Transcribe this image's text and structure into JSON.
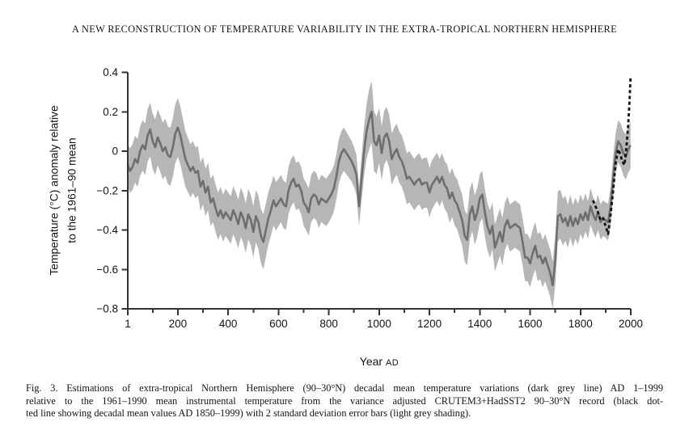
{
  "paper": {
    "running_head": "A NEW RECONSTRUCTION OF TEMPERATURE VARIABILITY IN THE EXTRA-TROPICAL NORTHERN HEMISPHERE",
    "caption_lines": [
      "Fig. 3. Estimations of extra-tropical Northern Hemisphere (90–30°N) decadal mean temperature variations (dark grey line) AD 1–1999",
      "relative to the 1961–1990 mean instrumental temperature from the variance adjusted CRUTEM3+HadSST2 90–30°N record (black dot-",
      "ted line showing decadal mean values AD 1850–1999) with 2 standard deviation error bars (light grey shading)."
    ]
  },
  "chart_data": {
    "type": "line",
    "title": "",
    "xlabel_word": "Year",
    "xlabel_era": "AD",
    "ylabel_lines": [
      "Temperature (°C) anomaly relative",
      "to the 1961–90 mean"
    ],
    "x_domain": [
      1,
      2000
    ],
    "y_domain": [
      -0.8,
      0.4
    ],
    "grid": "off",
    "legend": "none",
    "x_ticks": {
      "values": [
        1,
        200,
        400,
        600,
        800,
        1000,
        1200,
        1400,
        1600,
        1800,
        2000
      ],
      "labels": [
        "1",
        "200",
        "400",
        "600",
        "800",
        "1000",
        "1200",
        "1400",
        "1600",
        "1800",
        "2000"
      ],
      "minor": [
        100,
        300,
        500,
        700,
        900,
        1100,
        1300,
        1500,
        1700,
        1900
      ]
    },
    "y_ticks": {
      "values": [
        0.4,
        0.2,
        0,
        -0.2,
        -0.4,
        -0.6,
        -0.8
      ],
      "labels": [
        "0.4",
        "0.2",
        "0",
        "−0.2",
        "−0.4",
        "−0.6",
        "−0.8"
      ]
    },
    "colors": {
      "uncertainty_band": "#b6b6b6",
      "reconstruction_line": "#6e6e6e",
      "instrumental_line": "#141414",
      "axis": "#333333"
    },
    "series": {
      "reconstruction": {
        "name": "Extra-tropical NH (90–30°N) decadal mean temperature reconstruction, AD 1–1999",
        "style": "dark grey solid line",
        "points": [
          [
            1,
            -0.07
          ],
          [
            10,
            -0.1
          ],
          [
            20,
            -0.08
          ],
          [
            30,
            -0.04
          ],
          [
            40,
            -0.06
          ],
          [
            50,
            0.0
          ],
          [
            60,
            0.03
          ],
          [
            70,
            0.01
          ],
          [
            80,
            0.08
          ],
          [
            90,
            0.11
          ],
          [
            100,
            0.05
          ],
          [
            110,
            0.02
          ],
          [
            120,
            0.07
          ],
          [
            130,
            0.04
          ],
          [
            140,
            0.0
          ],
          [
            150,
            0.02
          ],
          [
            160,
            -0.02
          ],
          [
            170,
            -0.03
          ],
          [
            180,
            0.02
          ],
          [
            190,
            0.09
          ],
          [
            200,
            0.12
          ],
          [
            210,
            0.08
          ],
          [
            220,
            0.02
          ],
          [
            230,
            -0.04
          ],
          [
            240,
            -0.07
          ],
          [
            250,
            -0.1
          ],
          [
            260,
            -0.08
          ],
          [
            270,
            -0.11
          ],
          [
            280,
            -0.1
          ],
          [
            290,
            -0.18
          ],
          [
            300,
            -0.15
          ],
          [
            310,
            -0.21
          ],
          [
            320,
            -0.18
          ],
          [
            330,
            -0.26
          ],
          [
            340,
            -0.24
          ],
          [
            350,
            -0.29
          ],
          [
            360,
            -0.33
          ],
          [
            370,
            -0.3
          ],
          [
            380,
            -0.34
          ],
          [
            390,
            -0.31
          ],
          [
            400,
            -0.33
          ],
          [
            410,
            -0.35
          ],
          [
            420,
            -0.3
          ],
          [
            430,
            -0.33
          ],
          [
            440,
            -0.37
          ],
          [
            450,
            -0.31
          ],
          [
            460,
            -0.34
          ],
          [
            470,
            -0.39
          ],
          [
            480,
            -0.32
          ],
          [
            490,
            -0.35
          ],
          [
            500,
            -0.41
          ],
          [
            510,
            -0.33
          ],
          [
            520,
            -0.36
          ],
          [
            530,
            -0.43
          ],
          [
            540,
            -0.46
          ],
          [
            550,
            -0.4
          ],
          [
            560,
            -0.34
          ],
          [
            570,
            -0.3
          ],
          [
            580,
            -0.25
          ],
          [
            590,
            -0.28
          ],
          [
            600,
            -0.26
          ],
          [
            610,
            -0.24
          ],
          [
            620,
            -0.27
          ],
          [
            630,
            -0.28
          ],
          [
            640,
            -0.2
          ],
          [
            650,
            -0.16
          ],
          [
            660,
            -0.14
          ],
          [
            670,
            -0.18
          ],
          [
            680,
            -0.17
          ],
          [
            690,
            -0.2
          ],
          [
            700,
            -0.26
          ],
          [
            710,
            -0.28
          ],
          [
            720,
            -0.31
          ],
          [
            730,
            -0.24
          ],
          [
            740,
            -0.22
          ],
          [
            750,
            -0.23
          ],
          [
            760,
            -0.27
          ],
          [
            770,
            -0.24
          ],
          [
            780,
            -0.25
          ],
          [
            790,
            -0.26
          ],
          [
            800,
            -0.24
          ],
          [
            810,
            -0.22
          ],
          [
            820,
            -0.19
          ],
          [
            830,
            -0.13
          ],
          [
            840,
            -0.05
          ],
          [
            850,
            -0.01
          ],
          [
            860,
            0.01
          ],
          [
            870,
            -0.01
          ],
          [
            880,
            -0.03
          ],
          [
            890,
            -0.05
          ],
          [
            900,
            -0.08
          ],
          [
            910,
            -0.12
          ],
          [
            920,
            -0.28
          ],
          [
            930,
            -0.14
          ],
          [
            940,
            0.0
          ],
          [
            950,
            0.1
          ],
          [
            960,
            0.16
          ],
          [
            970,
            0.2
          ],
          [
            980,
            0.05
          ],
          [
            990,
            0.03
          ],
          [
            1000,
            0.08
          ],
          [
            1010,
            -0.01
          ],
          [
            1020,
            0.07
          ],
          [
            1030,
            0.09
          ],
          [
            1040,
            0.05
          ],
          [
            1050,
            -0.04
          ],
          [
            1060,
            -0.01
          ],
          [
            1070,
            0.01
          ],
          [
            1080,
            -0.03
          ],
          [
            1090,
            -0.05
          ],
          [
            1100,
            -0.09
          ],
          [
            1110,
            -0.14
          ],
          [
            1120,
            -0.13
          ],
          [
            1130,
            -0.15
          ],
          [
            1140,
            -0.17
          ],
          [
            1150,
            -0.15
          ],
          [
            1160,
            -0.14
          ],
          [
            1170,
            -0.17
          ],
          [
            1180,
            -0.16
          ],
          [
            1190,
            -0.16
          ],
          [
            1200,
            -0.21
          ],
          [
            1210,
            -0.17
          ],
          [
            1220,
            -0.15
          ],
          [
            1230,
            -0.13
          ],
          [
            1240,
            -0.16
          ],
          [
            1250,
            -0.13
          ],
          [
            1260,
            -0.17
          ],
          [
            1270,
            -0.19
          ],
          [
            1280,
            -0.24
          ],
          [
            1290,
            -0.21
          ],
          [
            1300,
            -0.25
          ],
          [
            1310,
            -0.27
          ],
          [
            1320,
            -0.31
          ],
          [
            1330,
            -0.35
          ],
          [
            1340,
            -0.43
          ],
          [
            1350,
            -0.45
          ],
          [
            1360,
            -0.32
          ],
          [
            1370,
            -0.28
          ],
          [
            1380,
            -0.35
          ],
          [
            1390,
            -0.31
          ],
          [
            1400,
            -0.24
          ],
          [
            1410,
            -0.22
          ],
          [
            1420,
            -0.31
          ],
          [
            1430,
            -0.38
          ],
          [
            1440,
            -0.42
          ],
          [
            1450,
            -0.38
          ],
          [
            1460,
            -0.49
          ],
          [
            1470,
            -0.45
          ],
          [
            1480,
            -0.41
          ],
          [
            1490,
            -0.46
          ],
          [
            1500,
            -0.38
          ],
          [
            1510,
            -0.35
          ],
          [
            1520,
            -0.39
          ],
          [
            1530,
            -0.38
          ],
          [
            1540,
            -0.37
          ],
          [
            1550,
            -0.38
          ],
          [
            1560,
            -0.39
          ],
          [
            1570,
            -0.46
          ],
          [
            1580,
            -0.54
          ],
          [
            1590,
            -0.54
          ],
          [
            1600,
            -0.57
          ],
          [
            1610,
            -0.52
          ],
          [
            1620,
            -0.48
          ],
          [
            1630,
            -0.54
          ],
          [
            1640,
            -0.53
          ],
          [
            1650,
            -0.57
          ],
          [
            1660,
            -0.54
          ],
          [
            1670,
            -0.58
          ],
          [
            1680,
            -0.62
          ],
          [
            1690,
            -0.68
          ],
          [
            1700,
            -0.55
          ],
          [
            1710,
            -0.33
          ],
          [
            1720,
            -0.32
          ],
          [
            1730,
            -0.36
          ],
          [
            1740,
            -0.34
          ],
          [
            1750,
            -0.38
          ],
          [
            1760,
            -0.33
          ],
          [
            1770,
            -0.38
          ],
          [
            1780,
            -0.34
          ],
          [
            1790,
            -0.37
          ],
          [
            1800,
            -0.32
          ],
          [
            1810,
            -0.35
          ],
          [
            1820,
            -0.31
          ],
          [
            1830,
            -0.35
          ],
          [
            1840,
            -0.28
          ],
          [
            1850,
            -0.32
          ],
          [
            1860,
            -0.35
          ],
          [
            1870,
            -0.31
          ],
          [
            1880,
            -0.36
          ],
          [
            1890,
            -0.34
          ],
          [
            1900,
            -0.35
          ],
          [
            1910,
            -0.36
          ],
          [
            1920,
            -0.28
          ],
          [
            1930,
            -0.13
          ],
          [
            1940,
            -0.01
          ],
          [
            1950,
            0.05
          ],
          [
            1960,
            0.03
          ],
          [
            1970,
            -0.01
          ],
          [
            1980,
            -0.03
          ],
          [
            1990,
            0.01
          ],
          [
            1999,
            0.03
          ]
        ]
      },
      "instrumental": {
        "name": "CRUTEM3+HadSST2 90–30°N decadal mean values, AD 1850–1999",
        "style": "black dotted line",
        "points": [
          [
            1850,
            -0.25
          ],
          [
            1860,
            -0.28
          ],
          [
            1870,
            -0.31
          ],
          [
            1880,
            -0.35
          ],
          [
            1890,
            -0.34
          ],
          [
            1900,
            -0.38
          ],
          [
            1910,
            -0.42
          ],
          [
            1920,
            -0.32
          ],
          [
            1930,
            -0.2
          ],
          [
            1940,
            -0.06
          ],
          [
            1950,
            0.01
          ],
          [
            1960,
            -0.02
          ],
          [
            1965,
            -0.05
          ],
          [
            1970,
            -0.06
          ],
          [
            1975,
            -0.07
          ],
          [
            1980,
            -0.01
          ],
          [
            1985,
            0.05
          ],
          [
            1990,
            0.14
          ],
          [
            1995,
            0.25
          ],
          [
            1999,
            0.37
          ]
        ]
      },
      "uncertainty_band": {
        "name": "2 standard deviation error bars",
        "style": "light grey shading",
        "halfwidth_points": [
          [
            1,
            0.11
          ],
          [
            100,
            0.14
          ],
          [
            200,
            0.15
          ],
          [
            300,
            0.12
          ],
          [
            400,
            0.12
          ],
          [
            500,
            0.13
          ],
          [
            540,
            0.14
          ],
          [
            600,
            0.12
          ],
          [
            700,
            0.12
          ],
          [
            800,
            0.12
          ],
          [
            860,
            0.11
          ],
          [
            905,
            0.1
          ],
          [
            920,
            0.1
          ],
          [
            945,
            0.13
          ],
          [
            965,
            0.16
          ],
          [
            1000,
            0.14
          ],
          [
            1060,
            0.13
          ],
          [
            1150,
            0.13
          ],
          [
            1250,
            0.12
          ],
          [
            1340,
            0.13
          ],
          [
            1420,
            0.12
          ],
          [
            1500,
            0.12
          ],
          [
            1570,
            0.12
          ],
          [
            1650,
            0.12
          ],
          [
            1690,
            0.12
          ],
          [
            1705,
            0.13
          ],
          [
            1750,
            0.11
          ],
          [
            1800,
            0.1
          ],
          [
            1850,
            0.09
          ],
          [
            1900,
            0.09
          ],
          [
            1930,
            0.1
          ],
          [
            1960,
            0.11
          ],
          [
            1999,
            0.12
          ]
        ]
      }
    }
  }
}
